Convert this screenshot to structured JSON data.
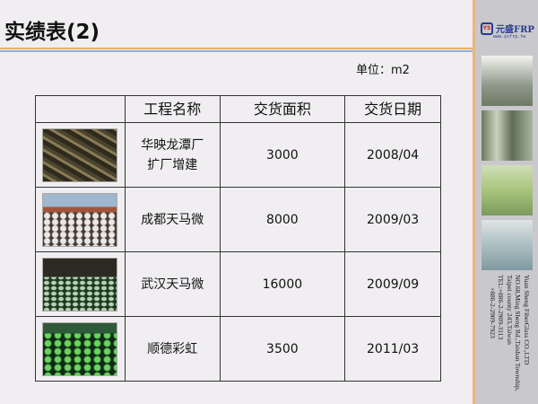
{
  "title": "实绩表(2)",
  "unit": "单位：m2",
  "table": {
    "headers": [
      "",
      "工程名称",
      "交货面积",
      "交货日期"
    ],
    "rows": [
      {
        "name_line1": "华映龙潭厂",
        "name_line2": "扩厂增建",
        "area": "3000",
        "date": "2008/04"
      },
      {
        "name_line1": "成都天马微",
        "name_line2": "",
        "area": "8000",
        "date": "2009/03"
      },
      {
        "name_line1": "武汉天马微",
        "name_line2": "",
        "area": "16000",
        "date": "2009/09"
      },
      {
        "name_line1": "顺德彩虹",
        "name_line2": "",
        "area": "3500",
        "date": "2011/03"
      }
    ]
  },
  "sidebar": {
    "logo_mark": "YS",
    "brand": "元盛FRP",
    "url": "www.ysfrp.tw",
    "address": [
      "Yuan Sheng FiberGlass CO.,LTD",
      "NO.68,Ming Sheng Rd.,Taishan Township,",
      "Taipei county 243,Taiwan",
      "TEL:+886-2-2909-3113",
      "+886-2-2909-7923"
    ]
  },
  "colors": {
    "accent_orange": "#e6ae6c",
    "accent_blue": "#8fb0dc",
    "brand": "#2a3b8f"
  }
}
